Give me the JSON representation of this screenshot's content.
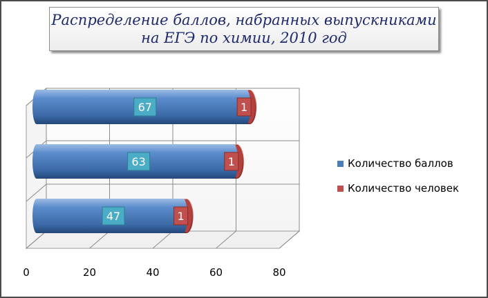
{
  "title": {
    "line1": "Распределение баллов, набранных выпускниками",
    "line2": "на ЕГЭ по химии, 2010 год"
  },
  "colors": {
    "series1": "#4a7ebb",
    "series1_label_bg": "#4bacc6",
    "series2": "#c0504d"
  },
  "chart_data": {
    "type": "bar",
    "orientation": "horizontal",
    "stacked": true,
    "title": "Распределение баллов, набранных выпускниками на ЕГЭ по химии, 2010 год",
    "categories": [
      "",
      "",
      ""
    ],
    "series": [
      {
        "name": "Количество баллов",
        "values": [
          67,
          63,
          47
        ]
      },
      {
        "name": "Количество человек",
        "values": [
          1,
          1,
          1
        ]
      }
    ],
    "xlim": [
      0,
      80
    ],
    "x_ticks": [
      "0",
      "20",
      "40",
      "60",
      "80"
    ],
    "grid": true,
    "legend_position": "right"
  }
}
